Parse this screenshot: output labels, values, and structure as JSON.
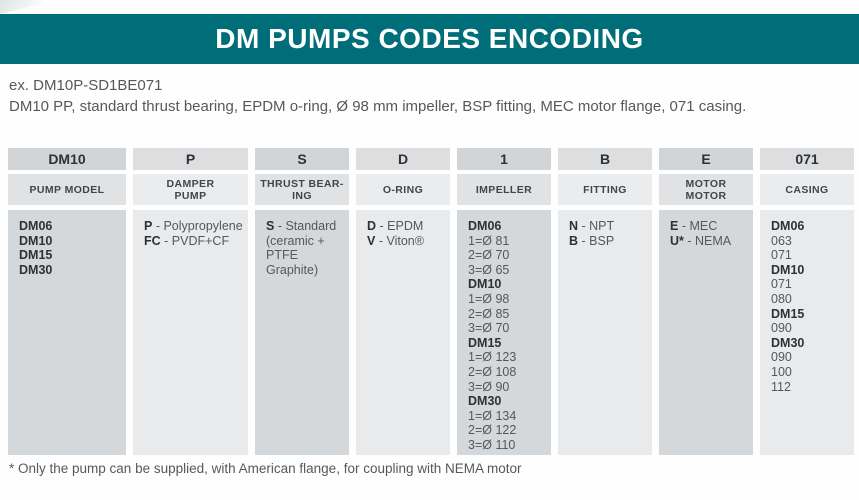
{
  "title": "DM PUMPS CODES ENCODING",
  "example": {
    "code_line": "ex. DM10P-SD1BE071",
    "description": "DM10 PP, standard thrust bearing, EPDM o-ring, Ø 98 mm impeller, BSP fitting, MEC motor flange, 071 casing."
  },
  "footnote": "* Only the pump can be supplied, with American flange, for coupling with NEMA motor",
  "colors": {
    "banner_teal": "#006e78",
    "column_shade_dark": "#d4d8da",
    "column_shade_light": "#e8eaeb"
  },
  "table": {
    "columns": [
      {
        "id": "pump-model",
        "code": "DM10",
        "label_lines": [
          "PUMP MODEL"
        ],
        "lines": [
          {
            "b": "DM06"
          },
          {
            "b": "DM10"
          },
          {
            "b": "DM15"
          },
          {
            "b": "DM30"
          }
        ]
      },
      {
        "id": "damper-pump",
        "code": "P",
        "label_lines": [
          "DAMPER",
          "PUMP"
        ],
        "lines": [
          {
            "b": "P",
            "t": "- Polypropylene"
          },
          {
            "b": "FC",
            "t": "- PVDF+CF"
          }
        ]
      },
      {
        "id": "thrust-bearing",
        "code": "S",
        "label_lines": [
          "THRUST BEAR-",
          "ING"
        ],
        "lines": [
          {
            "b": "S",
            "t": "- Standard"
          },
          {
            "t": "(ceramic +"
          },
          {
            "t": "PTFE Graphite)"
          }
        ]
      },
      {
        "id": "o-ring",
        "code": "D",
        "label_lines": [
          "O-RING"
        ],
        "lines": [
          {
            "b": "D",
            "t": "- EPDM"
          },
          {
            "b": "V",
            "t": "- Viton®"
          }
        ]
      },
      {
        "id": "impeller",
        "code": "1",
        "label_lines": [
          "IMPELLER"
        ],
        "lines": [
          {
            "b": "DM06"
          },
          {
            "t": "1=Ø 81"
          },
          {
            "t": "2=Ø 70"
          },
          {
            "t": "3=Ø 65"
          },
          {
            "b": "DM10"
          },
          {
            "t": "1=Ø 98"
          },
          {
            "t": "2=Ø 85"
          },
          {
            "t": "3=Ø 70"
          },
          {
            "b": "DM15"
          },
          {
            "t": "1=Ø 123"
          },
          {
            "t": "2=Ø 108"
          },
          {
            "t": "3=Ø 90"
          },
          {
            "b": "DM30"
          },
          {
            "t": "1=Ø 134"
          },
          {
            "t": "2=Ø 122"
          },
          {
            "t": "3=Ø 110"
          }
        ]
      },
      {
        "id": "fitting",
        "code": "B",
        "label_lines": [
          "FITTING"
        ],
        "lines": [
          {
            "b": "N",
            "t": "- NPT"
          },
          {
            "b": "B",
            "t": "- BSP"
          }
        ]
      },
      {
        "id": "motor",
        "code": "E",
        "label_lines": [
          "MOTOR",
          "MOTOR"
        ],
        "lines": [
          {
            "b": "E",
            "t": "- MEC"
          },
          {
            "b": "U*",
            "t": "- NEMA"
          }
        ]
      },
      {
        "id": "casing",
        "code": "071",
        "label_lines": [
          "CASING"
        ],
        "lines": [
          {
            "b": "DM06"
          },
          {
            "t": "063"
          },
          {
            "t": "071"
          },
          {
            "b": "DM10"
          },
          {
            "t": "071"
          },
          {
            "t": "080"
          },
          {
            "b": "DM15"
          },
          {
            "t": "090"
          },
          {
            "b": "DM30"
          },
          {
            "t": "090"
          },
          {
            "t": "100"
          },
          {
            "t": "112"
          }
        ]
      }
    ]
  }
}
